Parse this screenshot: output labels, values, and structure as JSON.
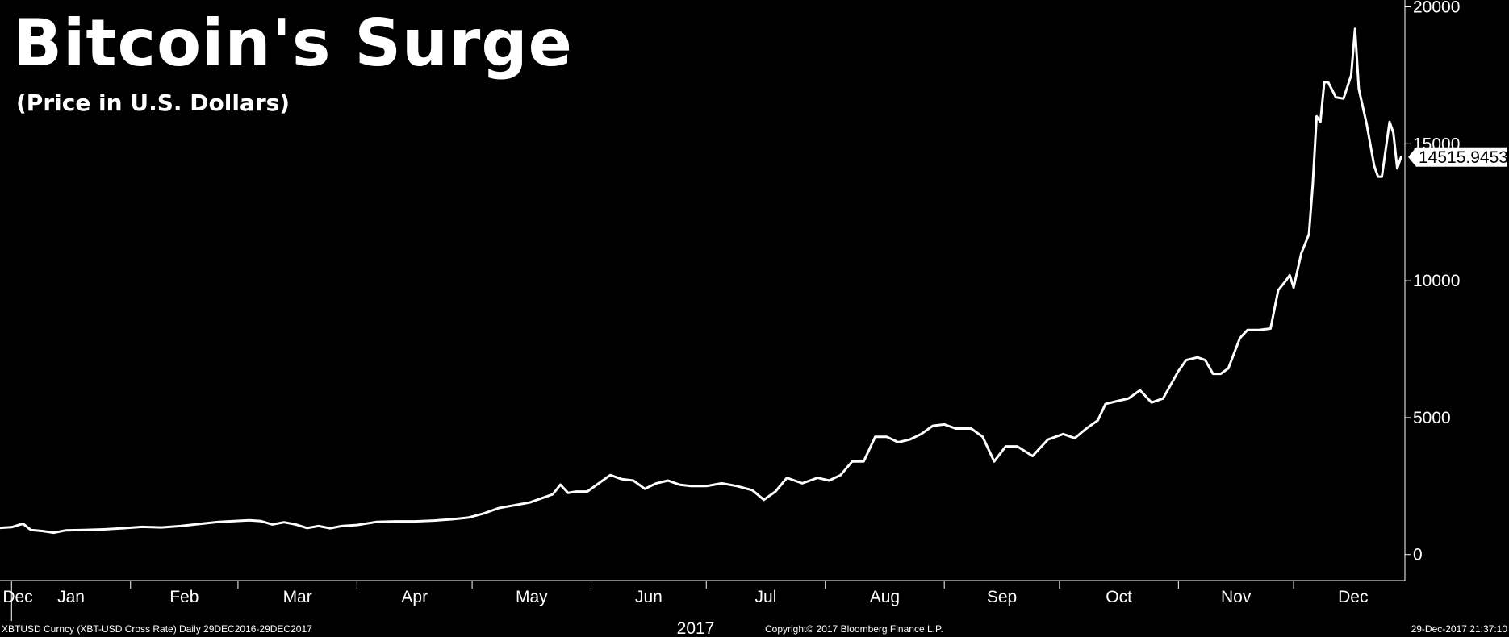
{
  "chart_data": {
    "type": "line",
    "title": "Bitcoin's Surge",
    "subtitle": "(Price in U.S. Dollars)",
    "year_label": "2017",
    "x_tick_labels": [
      "Dec",
      "Jan",
      "Feb",
      "Mar",
      "Apr",
      "May",
      "Jun",
      "Jul",
      "Aug",
      "Sep",
      "Oct",
      "Nov",
      "Dec"
    ],
    "y_ticks": [
      0,
      5000,
      10000,
      15000,
      20000
    ],
    "y_tick_labels": [
      "0",
      "5000",
      "10000",
      "15000",
      "20000"
    ],
    "ylim": [
      -950,
      20250
    ],
    "xlim": [
      "2016-12-29",
      "2017-12-30"
    ],
    "grid": false,
    "axis_position": "right",
    "last_value_label": "14515.9453",
    "colors": {
      "background": "#000000",
      "line": "#ffffff",
      "text": "#ffffff",
      "value_badge_bg": "#ffffff",
      "value_badge_text": "#000000"
    },
    "series": [
      {
        "x": [
          "2016-12-29",
          "2017-01-01",
          "2017-01-04",
          "2017-01-06",
          "2017-01-09",
          "2017-01-12",
          "2017-01-15",
          "2017-01-20",
          "2017-01-25",
          "2017-01-30",
          "2017-02-04",
          "2017-02-09",
          "2017-02-14",
          "2017-02-19",
          "2017-02-24",
          "2017-03-01",
          "2017-03-04",
          "2017-03-07",
          "2017-03-10",
          "2017-03-13",
          "2017-03-16",
          "2017-03-19",
          "2017-03-22",
          "2017-03-25",
          "2017-03-28",
          "2017-04-01",
          "2017-04-06",
          "2017-04-11",
          "2017-04-16",
          "2017-04-21",
          "2017-04-26",
          "2017-04-30",
          "2017-05-04",
          "2017-05-08",
          "2017-05-12",
          "2017-05-16",
          "2017-05-20",
          "2017-05-22",
          "2017-05-24",
          "2017-05-26",
          "2017-05-28",
          "2017-05-31",
          "2017-06-03",
          "2017-06-06",
          "2017-06-09",
          "2017-06-12",
          "2017-06-15",
          "2017-06-18",
          "2017-06-21",
          "2017-06-24",
          "2017-06-27",
          "2017-07-01",
          "2017-07-05",
          "2017-07-09",
          "2017-07-13",
          "2017-07-16",
          "2017-07-19",
          "2017-07-22",
          "2017-07-26",
          "2017-07-30",
          "2017-08-02",
          "2017-08-05",
          "2017-08-08",
          "2017-08-11",
          "2017-08-14",
          "2017-08-17",
          "2017-08-20",
          "2017-08-23",
          "2017-08-26",
          "2017-08-29",
          "2017-09-01",
          "2017-09-04",
          "2017-09-08",
          "2017-09-11",
          "2017-09-14",
          "2017-09-17",
          "2017-09-20",
          "2017-09-24",
          "2017-09-28",
          "2017-10-02",
          "2017-10-05",
          "2017-10-08",
          "2017-10-11",
          "2017-10-13",
          "2017-10-16",
          "2017-10-19",
          "2017-10-22",
          "2017-10-25",
          "2017-10-28",
          "2017-11-01",
          "2017-11-03",
          "2017-11-06",
          "2017-11-08",
          "2017-11-10",
          "2017-11-12",
          "2017-11-14",
          "2017-11-17",
          "2017-11-19",
          "2017-11-22",
          "2017-11-25",
          "2017-11-27",
          "2017-11-29",
          "2017-11-30",
          "2017-12-01",
          "2017-12-03",
          "2017-12-05",
          "2017-12-06",
          "2017-12-07",
          "2017-12-08",
          "2017-12-09",
          "2017-12-10",
          "2017-12-12",
          "2017-12-14",
          "2017-12-16",
          "2017-12-17",
          "2017-12-18",
          "2017-12-20",
          "2017-12-22",
          "2017-12-23",
          "2017-12-24",
          "2017-12-26",
          "2017-12-27",
          "2017-12-28",
          "2017-12-29"
        ],
        "values": [
          975,
          1000,
          1130,
          900,
          860,
          800,
          880,
          900,
          920,
          960,
          1010,
          990,
          1040,
          1120,
          1190,
          1230,
          1250,
          1220,
          1100,
          1180,
          1100,
          970,
          1040,
          960,
          1040,
          1080,
          1190,
          1210,
          1210,
          1240,
          1290,
          1350,
          1500,
          1700,
          1800,
          1900,
          2100,
          2200,
          2550,
          2250,
          2300,
          2300,
          2600,
          2900,
          2750,
          2700,
          2400,
          2600,
          2700,
          2550,
          2500,
          2500,
          2600,
          2500,
          2350,
          2000,
          2300,
          2800,
          2600,
          2800,
          2700,
          2900,
          3400,
          3400,
          4300,
          4300,
          4100,
          4200,
          4400,
          4700,
          4750,
          4600,
          4600,
          4300,
          3400,
          3950,
          3950,
          3600,
          4200,
          4400,
          4250,
          4600,
          4900,
          5500,
          5600,
          5700,
          6000,
          5550,
          5700,
          6700,
          7100,
          7200,
          7100,
          6600,
          6600,
          6800,
          7900,
          8200,
          8200,
          8250,
          9650,
          10000,
          10200,
          9750,
          11000,
          11700,
          13500,
          16000,
          15800,
          17250,
          17250,
          16700,
          16650,
          17500,
          19200,
          17000,
          15750,
          14200,
          13800,
          13800,
          15800,
          15400,
          14100,
          14516
        ]
      }
    ]
  },
  "footer": {
    "source": "XBTUSD Curncy (XBT-USD Cross Rate)  Daily 29DEC2016-29DEC2017",
    "copyright": "Copyright© 2017 Bloomberg Finance L.P.",
    "timestamp": "29-Dec-2017 21:37:10"
  }
}
